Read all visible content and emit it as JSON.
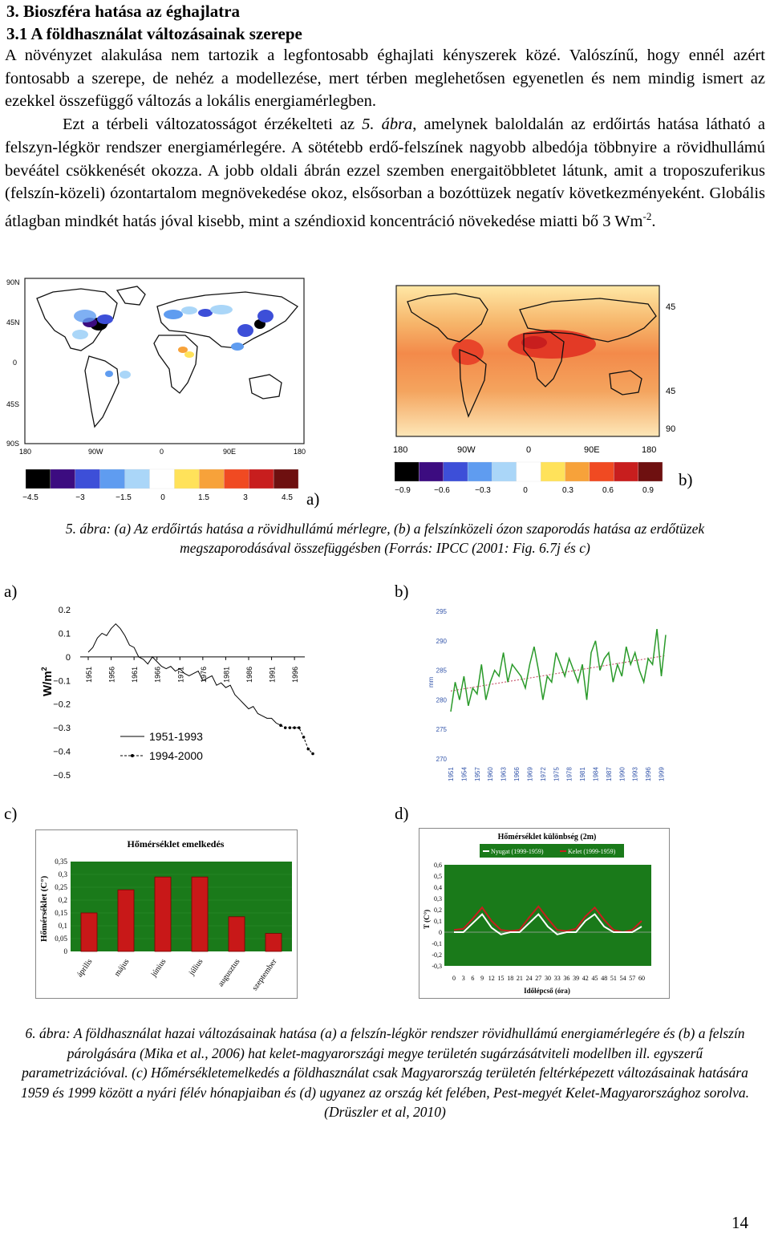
{
  "section_title": "3. Bioszféra hatása az éghajlatra",
  "subsection_title": "3.1 A földhasználat változásainak szerepe",
  "paragraph": {
    "line1": "A növényzet alakulása nem tartozik a legfontosabb éghajlati kényszerek közé. Valószínű, hogy ennél azért fontosabb a szerepe, de nehéz a modellezése, mert térben meglehetősen egyenetlen és nem mindig ismert az ezekkel összefüggő változás a lokális energiamérlegben.",
    "s2a": "Ezt a térbeli változatosságot érzékelteti az ",
    "s2ref": "5. ábra",
    "s2b": ", amelynek baloldalán az erdőirtás hatása látható a felszyn-légkör rendszer energiamérlegére. A sötétebb erdő-felszínek nagyobb albedója többnyire a rövidhullámú bevéátel csökkenését okozza. A jobb oldali ábrán ezzel szemben energaitöbbletet látunk, amit a troposzuferikus (felszín-közeli) ózontartalom megnövekedése okoz, elsősorban a bozóttüzek negatív következményeként. Globális átlagban mindkét hatás jóval kisebb, mint a széndioxid koncentráció növekedése miatti bő 3 Wm",
    "sup": "-2",
    "end": "."
  },
  "fig5": {
    "map_a": {
      "lat_labels": [
        "90N",
        "45N",
        "0",
        "45S",
        "90S"
      ],
      "lon_labels": [
        "180",
        "90W",
        "0",
        "90E",
        "180"
      ],
      "colorbar_ticks": [
        "−4.5",
        "−3",
        "−1.5",
        "0",
        "1.5",
        "3",
        "4.5"
      ],
      "colors": [
        "#000000",
        "#3c0c80",
        "#3d4fd8",
        "#5f9cf0",
        "#aad6f8",
        "#ffffff",
        "#ffe25a",
        "#f7a23a",
        "#f04a22",
        "#c81e1e",
        "#6e1010"
      ]
    },
    "map_b": {
      "lat_labels": [
        "45",
        "45",
        "90"
      ],
      "lon_labels": [
        "180",
        "90W",
        "0",
        "90E",
        "180"
      ],
      "colorbar_ticks": [
        "−0.9",
        "−0.6",
        "−0.3",
        "0",
        "0.3",
        "0.6",
        "0.9"
      ],
      "colors": [
        "#000000",
        "#3c0c80",
        "#3d4fd8",
        "#5f9cf0",
        "#aad6f8",
        "#ffffff",
        "#ffe25a",
        "#f7a23a",
        "#f04a22",
        "#c81e1e",
        "#6e1010"
      ]
    },
    "label_a": "a)",
    "label_b": "b)",
    "caption": "5. ábra: (a) Az erdőirtás hatása a rövidhullámú mérlegre, (b) a felszínközeli ózon szaporodás hatása az erdőtüzek megszaporodásával összefüggésben (Forrás: IPCC (2001: Fig. 6.7j és c)"
  },
  "panel_labels": {
    "a": "a)",
    "b": "b)",
    "c": "c)",
    "d": "d)"
  },
  "chart_data": [
    {
      "type": "line",
      "ylabel": "W/m",
      "ylabel_sup": "2",
      "ylim": [
        -0.5,
        0.2
      ],
      "yticks": [
        "0.2",
        "0.1",
        "0",
        "−0.1",
        "−0.2",
        "−0.3",
        "−0.4",
        "−0.5"
      ],
      "x_tick_labels": [
        "1951",
        "1956",
        "1961",
        "1966",
        "1971",
        "1976",
        "1981",
        "1986",
        "1991",
        "1996"
      ],
      "legend": [
        "1951-1993",
        "1994-2000"
      ],
      "series": [
        {
          "name": "1951-1993",
          "x": [
            1951,
            1952,
            1953,
            1954,
            1955,
            1956,
            1957,
            1958,
            1959,
            1960,
            1961,
            1962,
            1963,
            1964,
            1965,
            1966,
            1967,
            1968,
            1969,
            1970,
            1971,
            1972,
            1973,
            1974,
            1975,
            1976,
            1977,
            1978,
            1979,
            1980,
            1981,
            1982,
            1983,
            1984,
            1985,
            1986,
            1987,
            1988,
            1989,
            1990,
            1991,
            1992,
            1993
          ],
          "y": [
            0.02,
            0.04,
            0.08,
            0.1,
            0.09,
            0.12,
            0.14,
            0.12,
            0.09,
            0.05,
            0.04,
            0.0,
            -0.01,
            -0.03,
            0.0,
            -0.02,
            -0.04,
            -0.05,
            -0.04,
            -0.06,
            -0.05,
            -0.07,
            -0.08,
            -0.07,
            -0.06,
            -0.1,
            -0.09,
            -0.08,
            -0.12,
            -0.11,
            -0.13,
            -0.12,
            -0.16,
            -0.18,
            -0.2,
            -0.22,
            -0.21,
            -0.24,
            -0.25,
            -0.26,
            -0.26,
            -0.28,
            -0.29
          ]
        },
        {
          "name": "1994-2000",
          "x": [
            1993,
            1994,
            1995,
            1996,
            1997,
            1998,
            1999,
            2000
          ],
          "y": [
            -0.29,
            -0.3,
            -0.3,
            -0.3,
            -0.3,
            -0.34,
            -0.39,
            -0.41
          ]
        }
      ]
    },
    {
      "type": "line",
      "ylabel": "mm",
      "ylim": [
        270,
        295
      ],
      "yticks": [
        "295",
        "290",
        "285",
        "280",
        "275",
        "270"
      ],
      "x_tick_labels": [
        "1951",
        "1954",
        "1957",
        "1960",
        "1963",
        "1966",
        "1969",
        "1972",
        "1975",
        "1978",
        "1981",
        "1984",
        "1987",
        "1990",
        "1993",
        "1996",
        "1999"
      ],
      "series": [
        {
          "x": [
            1951,
            1952,
            1953,
            1954,
            1955,
            1956,
            1957,
            1958,
            1959,
            1960,
            1961,
            1962,
            1963,
            1964,
            1965,
            1966,
            1967,
            1968,
            1969,
            1970,
            1971,
            1972,
            1973,
            1974,
            1975,
            1976,
            1977,
            1978,
            1979,
            1980,
            1981,
            1982,
            1983,
            1984,
            1985,
            1986,
            1987,
            1988,
            1989,
            1990,
            1991,
            1992,
            1993,
            1994,
            1995,
            1996,
            1997,
            1998,
            1999,
            2000
          ],
          "y": [
            278,
            283,
            280,
            284,
            279,
            282,
            281,
            286,
            280,
            283,
            285,
            284,
            288,
            283,
            286,
            285,
            284,
            282,
            286,
            289,
            285,
            280,
            284,
            283,
            288,
            286,
            284,
            287,
            285,
            283,
            286,
            280,
            288,
            290,
            285,
            287,
            288,
            283,
            286,
            284,
            289,
            286,
            288,
            285,
            283,
            287,
            286,
            292,
            284,
            291
          ]
        },
        {
          "name": "trend",
          "x": [
            1951,
            2000
          ],
          "y": [
            281.5,
            287.5
          ]
        }
      ]
    },
    {
      "type": "bar",
      "title": "Hőmérséklet emelkedés",
      "ylabel": "Hőmérséklet (C°)",
      "ylim": [
        0,
        0.35
      ],
      "yticks": [
        "0,35",
        "0,3",
        "0,25",
        "0,2",
        "0,15",
        "0,1",
        "0,05",
        "0"
      ],
      "categories": [
        "április",
        "május",
        "június",
        "július",
        "augusztus",
        "szeptember"
      ],
      "values": [
        0.15,
        0.24,
        0.29,
        0.29,
        0.135,
        0.07
      ]
    },
    {
      "type": "line",
      "title": "Hőmérséklet különbség (2m)",
      "xlabel": "Időlépcső (óra)",
      "ylabel": "T (C°)",
      "ylim": [
        -0.3,
        0.6
      ],
      "yticks": [
        "0,6",
        "0,5",
        "0,4",
        "0,3",
        "0,2",
        "0,1",
        "0",
        "-0,1",
        "-0,2",
        "-0,3"
      ],
      "x_tick_labels": [
        "0",
        "3",
        "6",
        "9",
        "12",
        "15",
        "18",
        "21",
        "24",
        "27",
        "30",
        "33",
        "36",
        "39",
        "42",
        "45",
        "48",
        "51",
        "54",
        "57",
        "60"
      ],
      "legend": [
        "Nyugat (1999-1959)",
        "Kelet (1999-1959)"
      ],
      "series": [
        {
          "name": "Nyugat (1999-1959)",
          "x": [
            0,
            3,
            6,
            9,
            12,
            15,
            18,
            21,
            24,
            27,
            30,
            33,
            36,
            39,
            42,
            45,
            48,
            51,
            54,
            57,
            60
          ],
          "y": [
            0.0,
            0.0,
            0.08,
            0.16,
            0.04,
            -0.02,
            0.0,
            0.0,
            0.08,
            0.16,
            0.05,
            -0.02,
            0.0,
            0.0,
            0.1,
            0.16,
            0.05,
            0.0,
            0.0,
            0.0,
            0.05
          ]
        },
        {
          "name": "Kelet (1999-1959)",
          "x": [
            0,
            3,
            6,
            9,
            12,
            15,
            18,
            21,
            24,
            27,
            30,
            33,
            36,
            39,
            42,
            45,
            48,
            51,
            54,
            57,
            60
          ],
          "y": [
            0.02,
            0.03,
            0.12,
            0.22,
            0.1,
            0.02,
            0.01,
            0.02,
            0.13,
            0.23,
            0.12,
            0.02,
            0.01,
            0.03,
            0.14,
            0.22,
            0.11,
            0.02,
            0.0,
            0.02,
            0.1
          ]
        }
      ]
    }
  ],
  "fig6_caption": "6. ábra: A földhasználat hazai változásainak hatása (a) a felszín-légkör rendszer rövidhullámú energiamérlegére és (b) a felszín párolgására (Mika et al., 2006) hat kelet-magyarországi megye területén sugárzásátviteli modellben ill. egyszerű parametrizációval. (c) Hőmérsékletemelkedés a földhasználat csak Magyarország területén feltérképezett változásainak hatására 1959 és 1999 között a nyári félév hónapjaiban és (d) ugyanez az ország két felében, Pest-megyét Kelet-Magyarországhoz sorolva. (Drüszler et al, 2010)",
  "page_number": "14"
}
